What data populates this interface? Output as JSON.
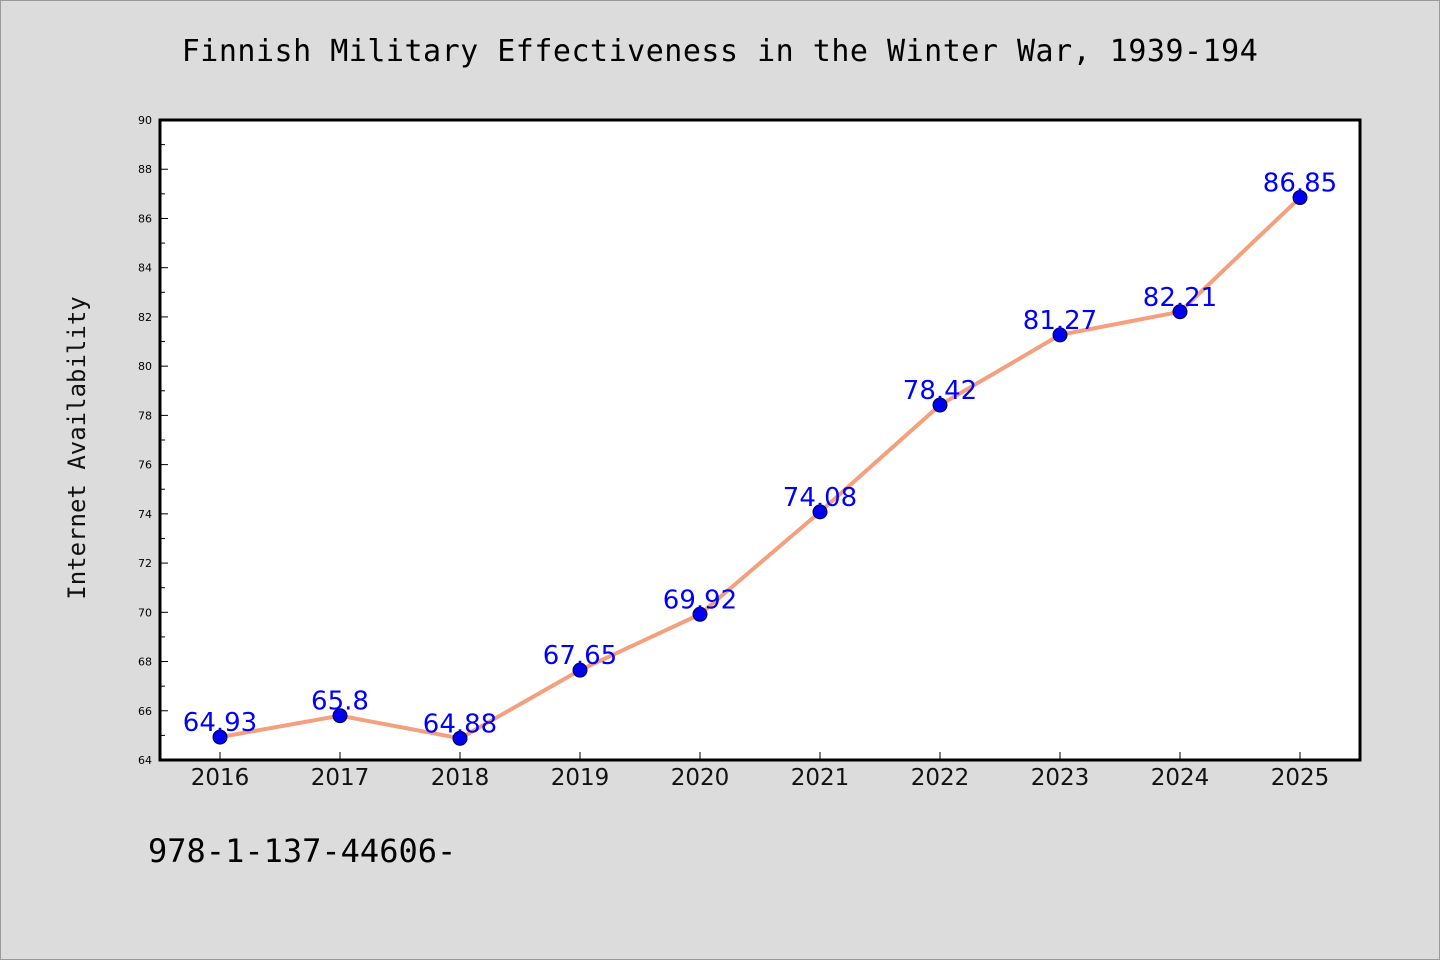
{
  "title": "Finnish Military Effectiveness in the Winter War, 1939-194",
  "footer_text": "978-1-137-44606-",
  "chart_data": {
    "type": "line",
    "title": "Finnish Military Effectiveness in the Winter War, 1939-194",
    "xlabel": "",
    "ylabel": "Internet Availability",
    "x": [
      "2016",
      "2017",
      "2018",
      "2019",
      "2020",
      "2021",
      "2022",
      "2023",
      "2024",
      "2025"
    ],
    "series": [
      {
        "values": [
          64.93,
          65.8,
          64.88,
          67.65,
          69.92,
          74.08,
          78.42,
          81.27,
          82.21,
          86.85
        ],
        "labels": [
          "64.93",
          "65.8",
          "64.88",
          "67.65",
          "69.92",
          "74.08",
          "78.42",
          "81.27",
          "82.21",
          "86.85"
        ],
        "line_color": "#f4a07e",
        "marker_color": "#0000ee"
      }
    ],
    "ylim": [
      64,
      90
    ],
    "yticks": [
      "64",
      "66",
      "68",
      "70",
      "72",
      "74",
      "76",
      "78",
      "80",
      "82",
      "84",
      "86",
      "88",
      "90"
    ],
    "grid": false,
    "legend": "none",
    "label_color": "#0000ff"
  }
}
